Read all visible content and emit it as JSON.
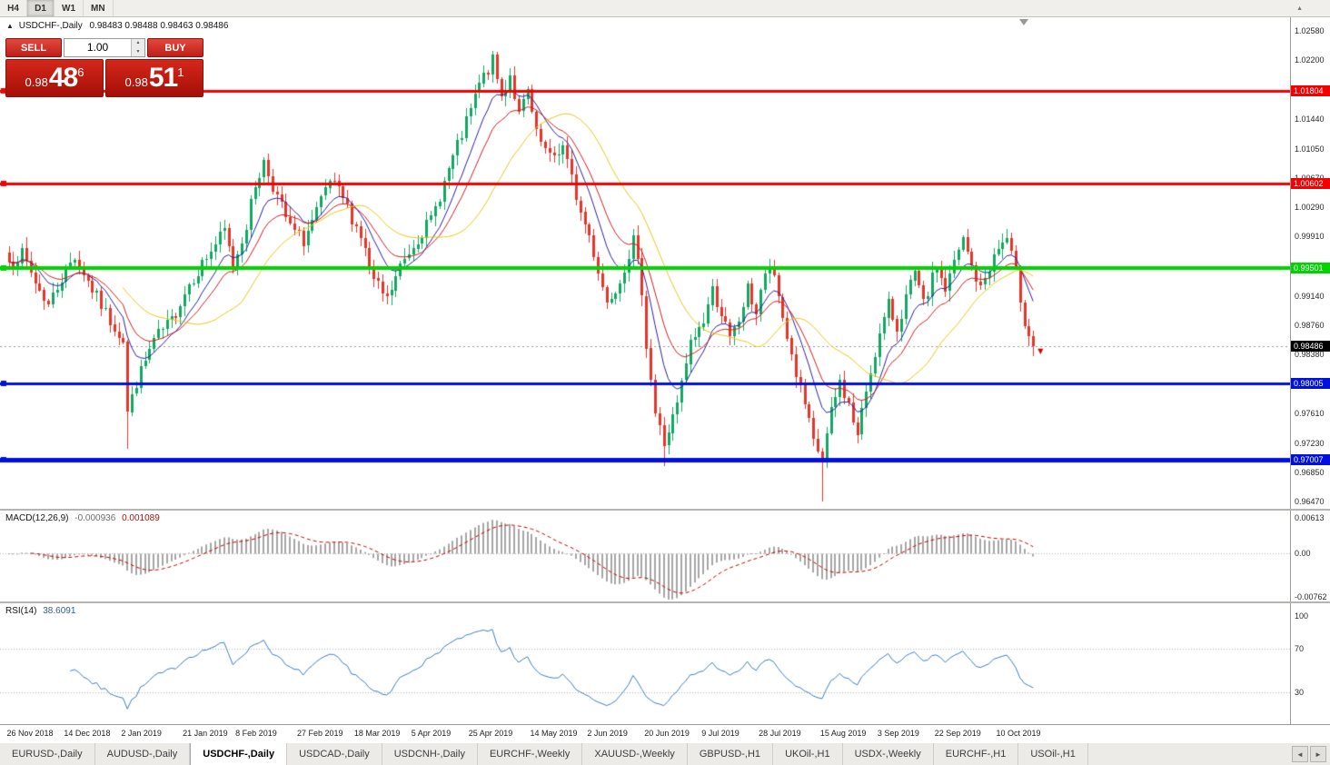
{
  "toolbar": {
    "timeframes": [
      {
        "label": "H4",
        "active": false
      },
      {
        "label": "D1",
        "active": true
      },
      {
        "label": "W1",
        "active": false
      },
      {
        "label": "MN",
        "active": false
      }
    ]
  },
  "window": {
    "title_symbol": "USDCHF-,Daily",
    "ohlc_text": "0.98483 0.98488 0.98463 0.98486"
  },
  "icons": {
    "title_marker": "▲",
    "spinner_up": "▲",
    "spinner_down": "▼",
    "tab_scroll_left": "◄",
    "tab_scroll_right": "►",
    "toolbar_marker": "▲"
  },
  "trade_panel": {
    "sell_label": "SELL",
    "buy_label": "BUY",
    "volume": "1.00",
    "sell_price": {
      "prefix": "0.98",
      "big": "48",
      "sup": "6"
    },
    "buy_price": {
      "prefix": "0.98",
      "big": "51",
      "sup": "1"
    }
  },
  "price_axis": {
    "ticks": [
      "1.02580",
      "1.02200",
      "1.01440",
      "1.01050",
      "1.00670",
      "1.00290",
      "0.99910",
      "0.99140",
      "0.98760",
      "0.98380",
      "0.97610",
      "0.97230",
      "0.96850",
      "0.96470"
    ],
    "current": {
      "label": "0.98486",
      "price": 0.98486,
      "bg": "#000000"
    }
  },
  "levels": [
    {
      "label": "1.01804",
      "price": 1.01804,
      "color": "#f40000",
      "width": 3
    },
    {
      "label": "1.00602",
      "price": 1.00602,
      "color": "#f40000",
      "width": 3
    },
    {
      "label": "0.99501",
      "price": 0.99501,
      "color": "#00d400",
      "width": 4
    },
    {
      "label": "0.98005",
      "price": 0.98005,
      "color": "#0010e0",
      "width": 3
    },
    {
      "label": "0.97007",
      "price": 0.97007,
      "color": "#0010e0",
      "width": 5
    }
  ],
  "macd_panel": {
    "label": "MACD(12,26,9)",
    "main_value": "-0.000936",
    "signal_value": "0.001089",
    "axis_ticks": [
      {
        "label": "0.00613",
        "value": 0.00613
      },
      {
        "label": "0.00",
        "value": 0
      },
      {
        "label": "-0.00762",
        "value": -0.00762
      }
    ]
  },
  "rsi_panel": {
    "label": "RSI(14)",
    "value": "38.6091",
    "axis_ticks": [
      {
        "label": "100",
        "value": 100
      },
      {
        "label": "70",
        "value": 70
      },
      {
        "label": "30",
        "value": 30
      }
    ],
    "level_lines": [
      70,
      30
    ]
  },
  "date_axis": {
    "labels": [
      {
        "text": "26 Nov 2018",
        "bar": 0
      },
      {
        "text": "14 Dec 2018",
        "bar": 13
      },
      {
        "text": "2 Jan 2019",
        "bar": 26
      },
      {
        "text": "21 Jan 2019",
        "bar": 40
      },
      {
        "text": "8 Feb 2019",
        "bar": 52
      },
      {
        "text": "27 Feb 2019",
        "bar": 66
      },
      {
        "text": "18 Mar 2019",
        "bar": 79
      },
      {
        "text": "5 Apr 2019",
        "bar": 92
      },
      {
        "text": "25 Apr 2019",
        "bar": 105
      },
      {
        "text": "14 May 2019",
        "bar": 119
      },
      {
        "text": "2 Jun 2019",
        "bar": 132
      },
      {
        "text": "20 Jun 2019",
        "bar": 145
      },
      {
        "text": "9 Jul 2019",
        "bar": 158
      },
      {
        "text": "28 Jul 2019",
        "bar": 171
      },
      {
        "text": "15 Aug 2019",
        "bar": 185
      },
      {
        "text": "3 Sep 2019",
        "bar": 198
      },
      {
        "text": "22 Sep 2019",
        "bar": 211
      },
      {
        "text": "10 Oct 2019",
        "bar": 225
      }
    ]
  },
  "tabs": {
    "items": [
      {
        "label": "EURUSD-,Daily",
        "active": false
      },
      {
        "label": "AUDUSD-,Daily",
        "active": false
      },
      {
        "label": "USDCHF-,Daily",
        "active": true
      },
      {
        "label": "USDCAD-,Daily",
        "active": false
      },
      {
        "label": "USDCNH-,Daily",
        "active": false
      },
      {
        "label": "EURCHF-,Weekly",
        "active": false
      },
      {
        "label": "XAUUSD-,Weekly",
        "active": false
      },
      {
        "label": "GBPUSD-,H1",
        "active": false
      },
      {
        "label": "UKOil-,H1",
        "active": false
      },
      {
        "label": "USDX-,Weekly",
        "active": false
      },
      {
        "label": "EURCHF-,H1",
        "active": false
      },
      {
        "label": "USOil-,H1",
        "active": false
      }
    ]
  },
  "chart_data": {
    "type": "candlestick",
    "symbol": "USDCHF",
    "timeframe": "Daily",
    "bars": 234,
    "price_range_visible": [
      0.9636,
      1.0276
    ],
    "up_color": "#12a763",
    "down_color": "#e5352a",
    "current_bid": 0.98486,
    "close_anchors": [
      [
        0,
        0.9958
      ],
      [
        3,
        0.9968
      ],
      [
        6,
        0.9932
      ],
      [
        9,
        0.9902
      ],
      [
        12,
        0.9938
      ],
      [
        15,
        0.9966
      ],
      [
        19,
        0.9922
      ],
      [
        23,
        0.9882
      ],
      [
        26,
        0.9858
      ],
      [
        27,
        0.9762
      ],
      [
        29,
        0.9802
      ],
      [
        33,
        0.9856
      ],
      [
        37,
        0.9882
      ],
      [
        41,
        0.993
      ],
      [
        45,
        0.9964
      ],
      [
        49,
        0.9998
      ],
      [
        51,
        0.9952
      ],
      [
        54,
        1.0006
      ],
      [
        56,
        1.0058
      ],
      [
        58,
        1.0088
      ],
      [
        61,
        1.0042
      ],
      [
        64,
        1.0002
      ],
      [
        67,
        0.9986
      ],
      [
        70,
        1.0022
      ],
      [
        73,
        1.0062
      ],
      [
        76,
        1.004
      ],
      [
        80,
        0.9992
      ],
      [
        83,
        0.9932
      ],
      [
        86,
        0.9908
      ],
      [
        89,
        0.9952
      ],
      [
        93,
        0.999
      ],
      [
        96,
        1.0012
      ],
      [
        100,
        1.0078
      ],
      [
        104,
        1.0138
      ],
      [
        107,
        1.0188
      ],
      [
        110,
        1.0218
      ],
      [
        112,
        1.0172
      ],
      [
        114,
        1.0202
      ],
      [
        116,
        1.0148
      ],
      [
        118,
        1.0178
      ],
      [
        120,
        1.0122
      ],
      [
        123,
        1.0092
      ],
      [
        126,
        1.0108
      ],
      [
        130,
        1.0022
      ],
      [
        132,
        0.9992
      ],
      [
        134,
        0.9948
      ],
      [
        136,
        0.9906
      ],
      [
        139,
        0.9936
      ],
      [
        142,
        0.9986
      ],
      [
        144,
        0.9922
      ],
      [
        145,
        0.9852
      ],
      [
        147,
        0.9762
      ],
      [
        149,
        0.9722
      ],
      [
        152,
        0.9772
      ],
      [
        155,
        0.9852
      ],
      [
        158,
        0.9882
      ],
      [
        160,
        0.9922
      ],
      [
        162,
        0.9892
      ],
      [
        164,
        0.9856
      ],
      [
        166,
        0.9882
      ],
      [
        168,
        0.9922
      ],
      [
        170,
        0.9892
      ],
      [
        171,
        0.9922
      ],
      [
        173,
        0.9952
      ],
      [
        175,
        0.9912
      ],
      [
        177,
        0.9862
      ],
      [
        179,
        0.9812
      ],
      [
        181,
        0.9772
      ],
      [
        183,
        0.9722
      ],
      [
        185,
        0.9702
      ],
      [
        187,
        0.9762
      ],
      [
        189,
        0.9802
      ],
      [
        191,
        0.9772
      ],
      [
        193,
        0.9732
      ],
      [
        195,
        0.9792
      ],
      [
        197,
        0.9842
      ],
      [
        198,
        0.9862
      ],
      [
        200,
        0.9902
      ],
      [
        202,
        0.9872
      ],
      [
        204,
        0.9912
      ],
      [
        206,
        0.9942
      ],
      [
        208,
        0.9902
      ],
      [
        210,
        0.9936
      ],
      [
        211,
        0.9952
      ],
      [
        213,
        0.9922
      ],
      [
        215,
        0.9956
      ],
      [
        217,
        0.9986
      ],
      [
        219,
        0.9952
      ],
      [
        221,
        0.9922
      ],
      [
        223,
        0.9952
      ],
      [
        225,
        0.9976
      ],
      [
        227,
        0.9988
      ],
      [
        229,
        0.9942
      ],
      [
        231,
        0.9882
      ],
      [
        233,
        0.98486
      ]
    ],
    "spikes": [
      {
        "i": 27,
        "low": 0.9716
      },
      {
        "i": 110,
        "high": 1.0232
      },
      {
        "i": 111,
        "high": 1.0226
      },
      {
        "i": 149,
        "low": 0.9693
      },
      {
        "i": 185,
        "low": 0.9647
      },
      {
        "i": 233,
        "low": 0.9838
      }
    ],
    "moving_averages": [
      {
        "type": "ema",
        "period": 9,
        "color": "#24249a"
      },
      {
        "type": "ema",
        "period": 16,
        "color": "#cf1d1d"
      },
      {
        "type": "sma",
        "period": 27,
        "color": "#e6c819"
      }
    ],
    "macd": {
      "fast": 12,
      "slow": 26,
      "signal": 9,
      "histogram_color": "#a6a6a6",
      "signal_color": "#c40000",
      "axis_range": [
        -0.00873,
        0.00628
      ]
    },
    "rsi": {
      "period": 14,
      "color": "#3b7dc0",
      "last": 38.6091
    }
  }
}
